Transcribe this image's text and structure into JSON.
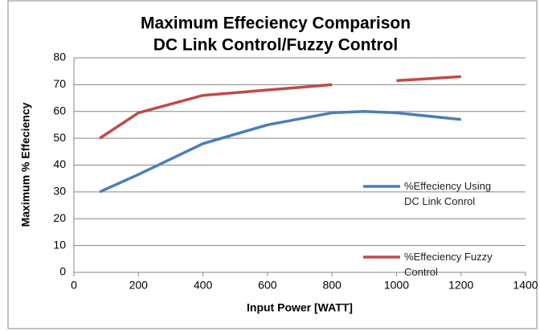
{
  "chart_data": {
    "type": "line",
    "title": [
      "Maximum Effeciency Comparison",
      "DC Link Control/Fuzzy Control"
    ],
    "x_label": "Input Power [WATT]",
    "y_label": "Maximum % Effeciency",
    "x": [
      80,
      200,
      400,
      600,
      800,
      900,
      1000,
      1200
    ],
    "series": [
      {
        "name": "%Effeciency Using DC Link Conrol",
        "color": "#4a7ebb",
        "values": [
          30,
          36.5,
          48,
          55,
          59.5,
          60,
          59.5,
          57
        ]
      },
      {
        "name": "%Effeciency Fuzzy Control",
        "color": "#be4b48",
        "values": [
          50,
          59.5,
          66,
          68,
          70,
          null,
          71.5,
          73
        ]
      }
    ],
    "xlim": [
      0,
      1400
    ],
    "xticks": [
      0,
      200,
      400,
      600,
      800,
      1000,
      1200,
      1400
    ],
    "ylim": [
      0,
      80
    ],
    "yticks": [
      0,
      10,
      20,
      30,
      40,
      50,
      60,
      70,
      80
    ],
    "grid": true
  }
}
